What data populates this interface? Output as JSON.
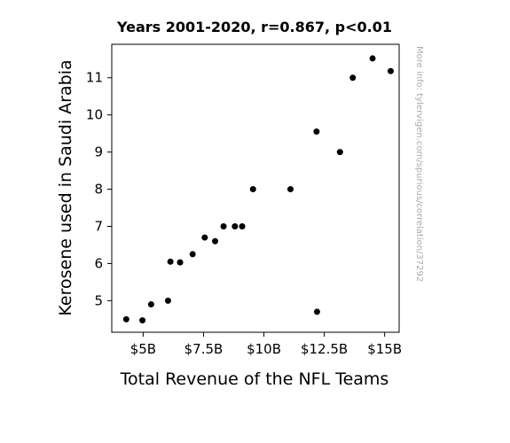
{
  "chart_data": {
    "type": "scatter",
    "title": "Years 2001-2020, r=0.867, p<0.01",
    "xlabel": "Total Revenue of the NFL Teams",
    "ylabel": "Kerosene used in Saudi Arabia",
    "x_unit": "billion USD",
    "xlim": [
      3.7,
      15.6
    ],
    "ylim": [
      4.15,
      11.9
    ],
    "x_ticks": [
      5,
      7.5,
      10,
      12.5,
      15
    ],
    "x_tick_labels": [
      "$5B",
      "$7.5B",
      "$10B",
      "$12.5B",
      "$15B"
    ],
    "y_ticks": [
      5,
      6,
      7,
      8,
      9,
      10,
      11
    ],
    "y_tick_labels": [
      "5",
      "6",
      "7",
      "8",
      "9",
      "10",
      "11"
    ],
    "grid": false,
    "marker_color": "#000000",
    "points": [
      {
        "x": 4.3,
        "y": 4.5
      },
      {
        "x": 4.97,
        "y": 4.47
      },
      {
        "x": 5.33,
        "y": 4.9
      },
      {
        "x": 6.03,
        "y": 5.0
      },
      {
        "x": 6.13,
        "y": 6.05
      },
      {
        "x": 6.53,
        "y": 6.03
      },
      {
        "x": 7.05,
        "y": 6.25
      },
      {
        "x": 7.55,
        "y": 6.7
      },
      {
        "x": 7.98,
        "y": 6.6
      },
      {
        "x": 8.33,
        "y": 7.0
      },
      {
        "x": 8.8,
        "y": 7.0
      },
      {
        "x": 9.1,
        "y": 7.0
      },
      {
        "x": 9.55,
        "y": 8.0
      },
      {
        "x": 11.1,
        "y": 8.0
      },
      {
        "x": 12.18,
        "y": 9.55
      },
      {
        "x": 12.2,
        "y": 4.7
      },
      {
        "x": 13.15,
        "y": 9.0
      },
      {
        "x": 13.68,
        "y": 11.0
      },
      {
        "x": 14.5,
        "y": 11.52
      },
      {
        "x": 15.25,
        "y": 11.18
      }
    ]
  },
  "watermark": "More info: tylervigen.com/spurious/correlation/37292"
}
